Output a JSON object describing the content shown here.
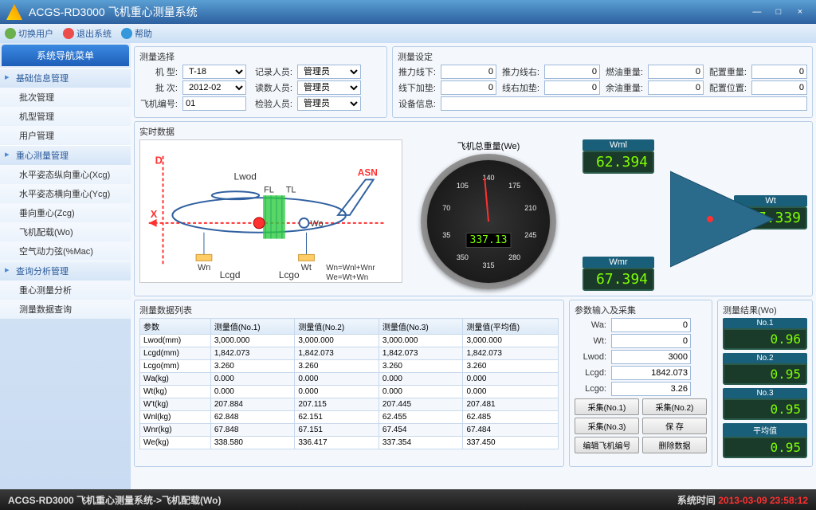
{
  "window": {
    "title": "ACGS-RD3000 飞机重心测量系统"
  },
  "toolbar": {
    "switch_user": "切换用户",
    "exit": "退出系统",
    "help": "帮助"
  },
  "nav": {
    "header": "系统导航菜单",
    "groups": [
      {
        "label": "基础信息管理",
        "items": [
          "批次管理",
          "机型管理",
          "用户管理"
        ]
      },
      {
        "label": "重心测量管理",
        "items": [
          "水平姿态纵向重心(Xcg)",
          "水平姿态横向重心(Ycg)",
          "垂向重心(Zcg)",
          "飞机配载(Wo)",
          "空气动力弦(%Mac)"
        ]
      },
      {
        "label": "查询分析管理",
        "items": [
          "重心测量分析",
          "测量数据查询"
        ]
      }
    ]
  },
  "sel": {
    "legend": "测量选择",
    "type_l": "机    型:",
    "type_v": "T-18",
    "batch_l": "批    次:",
    "batch_v": "2012-02",
    "sn_l": "飞机编号:",
    "sn_v": "01",
    "rec_l": "记录人员:",
    "rec_v": "管理员",
    "read_l": "读数人员:",
    "read_v": "管理员",
    "chk_l": "检验人员:",
    "chk_v": "管理员"
  },
  "set": {
    "legend": "测量设定",
    "f1": "推力线下:",
    "f2": "推力线右:",
    "f3": "燃油重量:",
    "f4": "配置重量:",
    "f5": "线下加垫:",
    "f6": "线右加垫:",
    "f7": "余油重量:",
    "f8": "配置位置:",
    "dev": "设备信息:",
    "v0": "0"
  },
  "rt": {
    "legend": "实时数据",
    "gauge_title": "飞机总重量(We)",
    "gauge_value": "337.13",
    "ticks": [
      "140",
      "175",
      "210",
      "245",
      "280",
      "315",
      "350",
      "35",
      "70",
      "105"
    ],
    "wml_l": "Wml",
    "wml_v": "62.394",
    "wmr_l": "Wmr",
    "wmr_v": "67.394",
    "wt_l": "Wt",
    "wt_v": "207.339",
    "diagram": {
      "D": "D",
      "X": "X",
      "ASN": "ASN",
      "Lwod": "Lwod",
      "FL": "FL",
      "TL": "TL",
      "Wo": "Wo",
      "Wn": "Wn",
      "Wt": "Wt",
      "Lcgd": "Lcgd",
      "Lcgo": "Lcgo",
      "eq": "Wn=Wnl+Wnr\nWe=Wt+Wn"
    }
  },
  "tbl": {
    "legend": "测量数据列表",
    "cols": [
      "参数",
      "测量值(No.1)",
      "测量值(No.2)",
      "测量值(No.3)",
      "测量值(平均值)"
    ],
    "rows": [
      [
        "Lwod(mm)",
        "3,000.000",
        "3,000.000",
        "3,000.000",
        "3,000.000"
      ],
      [
        "Lcgd(mm)",
        "1,842.073",
        "1,842.073",
        "1,842.073",
        "1,842.073"
      ],
      [
        "Lcgo(mm)",
        "3.260",
        "3.260",
        "3.260",
        "3.260"
      ],
      [
        "Wa(kg)",
        "0.000",
        "0.000",
        "0.000",
        "0.000"
      ],
      [
        "Wt(kg)",
        "0.000",
        "0.000",
        "0.000",
        "0.000"
      ],
      [
        "W't(kg)",
        "207.884",
        "207.115",
        "207.445",
        "207.481"
      ],
      [
        "Wnl(kg)",
        "62.848",
        "62.151",
        "62.455",
        "62.485"
      ],
      [
        "Wnr(kg)",
        "67.848",
        "67.151",
        "67.454",
        "67.484"
      ],
      [
        "We(kg)",
        "338.580",
        "336.417",
        "337.354",
        "337.450"
      ]
    ]
  },
  "inp": {
    "legend": "参数输入及采集",
    "wa": "Wa:",
    "wa_v": "0",
    "wt": "Wt:",
    "wt_v": "0",
    "lwod": "Lwod:",
    "lwod_v": "3000",
    "lcgd": "Lcgd:",
    "lcgd_v": "1842.073",
    "lcgo": "Lcgo:",
    "lcgo_v": "3.26",
    "b1": "采集(No.1)",
    "b2": "采集(No.2)",
    "b3": "采集(No.3)",
    "b4": "保    存",
    "b5": "编辑飞机编号",
    "b6": "删除数据"
  },
  "res": {
    "legend": "测量结果(Wo)",
    "items": [
      {
        "l": "No.1",
        "v": "0.96"
      },
      {
        "l": "No.2",
        "v": "0.95"
      },
      {
        "l": "No.3",
        "v": "0.95"
      },
      {
        "l": "平均值",
        "v": "0.95"
      }
    ]
  },
  "status": {
    "left": "ACGS-RD3000 飞机重心测量系统->飞机配载(Wo)",
    "time_l": "系统时间",
    "time_v": "2013-03-09 23:58:12"
  }
}
